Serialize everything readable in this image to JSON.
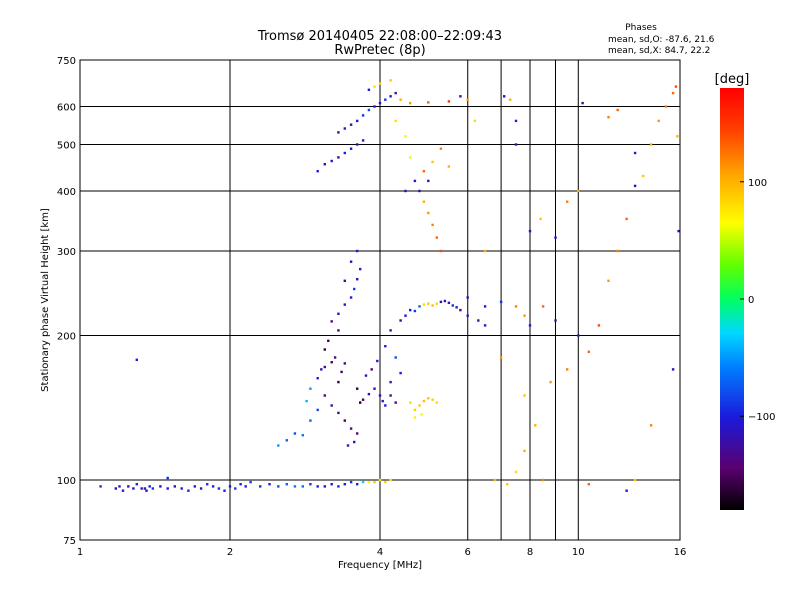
{
  "chart_data": {
    "type": "scatter",
    "title": "Tromsø 20140405 22:08:00–22:09:43",
    "subtitle": "RwPretec (8p)",
    "xlabel": "Frequency [MHz]",
    "ylabel": "Stationary phase Virtual Height [km]",
    "x_scale": "log",
    "y_scale": "log",
    "xlim": [
      1,
      16
    ],
    "ylim": [
      75,
      750
    ],
    "x_ticks": [
      1,
      2,
      4,
      6,
      8,
      10,
      16
    ],
    "x_tick_labels": [
      "1",
      "2",
      "4",
      "6",
      "8",
      "10",
      "16"
    ],
    "y_ticks": [
      75,
      100,
      200,
      300,
      400,
      500,
      600,
      750
    ],
    "y_tick_labels": [
      "75",
      "100",
      "200",
      "300",
      "400",
      "500",
      "600",
      "750"
    ],
    "grid": true,
    "phase_info": {
      "heading": "Phases",
      "line1": "mean, sd,O: -87.6, 21.6",
      "line2": "mean, sd,X: 84.7, 22.2"
    },
    "colorbar": {
      "label": "[deg]",
      "range": [
        -180,
        180
      ],
      "ticks": [
        100,
        0,
        -100
      ],
      "tick_labels": [
        "100",
        "0",
        "−100"
      ]
    },
    "series": [
      {
        "points": [
          [
            1.1,
            97,
            -90
          ],
          [
            1.18,
            96,
            -120
          ],
          [
            1.2,
            97,
            -110
          ],
          [
            1.22,
            95,
            -100
          ],
          [
            1.25,
            97,
            -115
          ],
          [
            1.28,
            96,
            -105
          ],
          [
            1.3,
            98,
            -95
          ],
          [
            1.33,
            96,
            -120
          ],
          [
            1.36,
            95,
            -110
          ],
          [
            1.38,
            97,
            -100
          ],
          [
            1.4,
            96,
            -90
          ],
          [
            1.5,
            96,
            -105
          ],
          [
            1.55,
            97,
            -110
          ],
          [
            1.6,
            96,
            -100
          ],
          [
            1.65,
            95,
            -95
          ],
          [
            1.7,
            97,
            -100
          ],
          [
            1.75,
            96,
            -110
          ],
          [
            1.8,
            98,
            -90
          ],
          [
            1.85,
            97,
            -100
          ],
          [
            1.9,
            96,
            -95
          ],
          [
            1.95,
            95,
            -100
          ],
          [
            2.0,
            97,
            -110
          ],
          [
            2.05,
            96,
            -90
          ],
          [
            2.1,
            98,
            -100
          ],
          [
            2.15,
            97,
            -95
          ],
          [
            2.2,
            99,
            -85
          ],
          [
            2.3,
            97,
            -90
          ],
          [
            2.4,
            98,
            -100
          ],
          [
            2.5,
            97,
            -80
          ],
          [
            2.6,
            98,
            -70
          ],
          [
            2.7,
            97,
            -60
          ],
          [
            2.8,
            97,
            -65
          ],
          [
            2.9,
            98,
            -90
          ],
          [
            3.0,
            97,
            -100
          ],
          [
            3.1,
            97,
            -105
          ],
          [
            3.2,
            98,
            -110
          ],
          [
            3.3,
            97,
            -95
          ],
          [
            3.4,
            98,
            -100
          ],
          [
            3.5,
            99,
            -90
          ],
          [
            3.6,
            98,
            -95
          ],
          [
            3.7,
            99,
            -30
          ],
          [
            3.8,
            99,
            60
          ],
          [
            3.9,
            99,
            90
          ],
          [
            4.0,
            100,
            80
          ],
          [
            4.1,
            99,
            85
          ],
          [
            4.2,
            100,
            75
          ],
          [
            1.3,
            178,
            -100
          ],
          [
            1.5,
            101,
            -95
          ],
          [
            1.35,
            96,
            -115
          ],
          [
            1.45,
            97,
            -120
          ],
          [
            2.5,
            118,
            -50
          ],
          [
            2.6,
            121,
            -70
          ],
          [
            2.7,
            125,
            -80
          ],
          [
            2.8,
            124,
            -60
          ],
          [
            2.9,
            133,
            -70
          ],
          [
            3.0,
            140,
            -80
          ],
          [
            2.85,
            146,
            -40
          ],
          [
            2.9,
            155,
            -50
          ],
          [
            3.0,
            163,
            -100
          ],
          [
            3.05,
            170,
            -120
          ],
          [
            3.1,
            172,
            -130
          ],
          [
            3.2,
            176,
            -150
          ],
          [
            3.25,
            180,
            -140
          ],
          [
            3.1,
            187,
            -160
          ],
          [
            3.15,
            195,
            -150
          ],
          [
            3.3,
            205,
            -140
          ],
          [
            3.2,
            214,
            -130
          ],
          [
            3.3,
            222,
            -120
          ],
          [
            3.4,
            232,
            -110
          ],
          [
            3.5,
            240,
            -100
          ],
          [
            3.55,
            250,
            -90
          ],
          [
            3.6,
            262,
            -110
          ],
          [
            3.65,
            275,
            -100
          ],
          [
            3.5,
            285,
            -120
          ],
          [
            3.4,
            260,
            -140
          ],
          [
            3.6,
            300,
            -100
          ],
          [
            3.1,
            150,
            -140
          ],
          [
            3.2,
            143,
            -120
          ],
          [
            3.3,
            138,
            -130
          ],
          [
            3.4,
            133,
            -150
          ],
          [
            3.5,
            128,
            -130
          ],
          [
            3.6,
            125,
            -140
          ],
          [
            3.55,
            120,
            -120
          ],
          [
            3.45,
            118,
            -110
          ],
          [
            3.7,
            147,
            -150
          ],
          [
            3.8,
            151,
            -130
          ],
          [
            3.9,
            155,
            -120
          ],
          [
            3.75,
            165,
            -110
          ],
          [
            3.85,
            170,
            -140
          ],
          [
            3.95,
            177,
            -100
          ],
          [
            3.3,
            160,
            -160
          ],
          [
            3.35,
            168,
            -150
          ],
          [
            3.4,
            175,
            -130
          ],
          [
            3.6,
            155,
            -160
          ],
          [
            3.65,
            145,
            -170
          ],
          [
            4.0,
            150,
            -120
          ],
          [
            4.05,
            146,
            -110
          ],
          [
            4.1,
            143,
            -100
          ],
          [
            4.2,
            150,
            -120
          ],
          [
            4.3,
            145,
            -130
          ],
          [
            4.2,
            160,
            -110
          ],
          [
            4.4,
            167,
            -100
          ],
          [
            4.3,
            180,
            -80
          ],
          [
            4.1,
            190,
            -100
          ],
          [
            4.2,
            205,
            -110
          ],
          [
            4.4,
            215,
            -120
          ],
          [
            4.5,
            220,
            -110
          ],
          [
            4.6,
            226,
            -100
          ],
          [
            4.7,
            225,
            -90
          ],
          [
            4.8,
            230,
            -70
          ],
          [
            4.9,
            232,
            80
          ],
          [
            5.0,
            233,
            90
          ],
          [
            5.1,
            231,
            95
          ],
          [
            5.2,
            233,
            85
          ],
          [
            5.3,
            235,
            -120
          ],
          [
            5.4,
            236,
            -110
          ],
          [
            5.5,
            234,
            -100
          ],
          [
            5.6,
            231,
            -90
          ],
          [
            5.7,
            229,
            -100
          ],
          [
            5.8,
            226,
            -140
          ],
          [
            6.0,
            220,
            -110
          ],
          [
            6.3,
            215,
            -120
          ],
          [
            6.5,
            210,
            -100
          ],
          [
            4.6,
            145,
            80
          ],
          [
            4.7,
            140,
            85
          ],
          [
            4.8,
            143,
            90
          ],
          [
            4.9,
            146,
            95
          ],
          [
            5.0,
            148,
            90
          ],
          [
            5.1,
            147,
            88
          ],
          [
            5.2,
            145,
            80
          ],
          [
            4.7,
            135,
            70
          ],
          [
            4.85,
            137,
            60
          ],
          [
            3.0,
            440,
            -100
          ],
          [
            3.1,
            455,
            -120
          ],
          [
            3.2,
            462,
            -110
          ],
          [
            3.3,
            470,
            -130
          ],
          [
            3.4,
            480,
            -100
          ],
          [
            3.5,
            490,
            -110
          ],
          [
            3.6,
            500,
            -120
          ],
          [
            3.7,
            510,
            -100
          ],
          [
            3.3,
            530,
            -130
          ],
          [
            3.4,
            540,
            -110
          ],
          [
            3.5,
            550,
            -120
          ],
          [
            3.6,
            560,
            -100
          ],
          [
            3.7,
            575,
            -90
          ],
          [
            3.8,
            590,
            -80
          ],
          [
            3.9,
            600,
            -100
          ],
          [
            4.0,
            610,
            -110
          ],
          [
            4.1,
            620,
            -90
          ],
          [
            4.2,
            630,
            -100
          ],
          [
            4.3,
            640,
            -120
          ],
          [
            3.8,
            650,
            -100
          ],
          [
            3.9,
            660,
            80
          ],
          [
            4.0,
            670,
            85
          ],
          [
            4.2,
            680,
            90
          ],
          [
            4.4,
            620,
            100
          ],
          [
            4.6,
            610,
            110
          ],
          [
            5.0,
            612,
            130
          ],
          [
            5.5,
            615,
            150
          ],
          [
            4.3,
            560,
            80
          ],
          [
            4.5,
            520,
            70
          ],
          [
            4.6,
            470,
            60
          ],
          [
            4.7,
            420,
            -100
          ],
          [
            4.8,
            400,
            -120
          ],
          [
            4.9,
            380,
            100
          ],
          [
            5.0,
            360,
            110
          ],
          [
            5.1,
            340,
            120
          ],
          [
            5.2,
            320,
            130
          ],
          [
            5.3,
            300,
            140
          ],
          [
            6.0,
            240,
            -110
          ],
          [
            6.5,
            230,
            -100
          ],
          [
            7.0,
            235,
            -90
          ],
          [
            7.5,
            230,
            120
          ],
          [
            7.8,
            220,
            110
          ],
          [
            8.0,
            210,
            -100
          ],
          [
            8.5,
            230,
            130
          ],
          [
            9.0,
            215,
            -120
          ],
          [
            10.0,
            200,
            -110
          ],
          [
            6.8,
            100,
            100
          ],
          [
            7.2,
            98,
            90
          ],
          [
            7.5,
            104,
            80
          ],
          [
            7.8,
            150,
            90
          ],
          [
            8.2,
            130,
            100
          ],
          [
            8.8,
            160,
            110
          ],
          [
            9.5,
            170,
            120
          ],
          [
            10.5,
            185,
            130
          ],
          [
            11.0,
            210,
            140
          ],
          [
            11.5,
            260,
            110
          ],
          [
            12.0,
            300,
            120
          ],
          [
            12.5,
            350,
            130
          ],
          [
            13.0,
            410,
            -120
          ],
          [
            13.5,
            430,
            90
          ],
          [
            14.0,
            500,
            100
          ],
          [
            14.5,
            560,
            110
          ],
          [
            15.0,
            600,
            120
          ],
          [
            15.5,
            640,
            130
          ],
          [
            15.7,
            660,
            140
          ],
          [
            15.8,
            520,
            100
          ],
          [
            15.9,
            330,
            -110
          ],
          [
            15.5,
            170,
            -120
          ],
          [
            14.0,
            130,
            120
          ],
          [
            13.0,
            100,
            90
          ],
          [
            12.5,
            95,
            -100
          ],
          [
            10.5,
            98,
            130
          ],
          [
            8.5,
            100,
            120
          ],
          [
            7.8,
            115,
            100
          ],
          [
            7.0,
            180,
            110
          ],
          [
            6.5,
            300,
            100
          ],
          [
            7.5,
            500,
            -110
          ],
          [
            7.5,
            560,
            -100
          ],
          [
            8.0,
            330,
            -120
          ],
          [
            8.4,
            350,
            90
          ],
          [
            9.0,
            320,
            -110
          ],
          [
            9.5,
            380,
            120
          ],
          [
            10.0,
            400,
            100
          ],
          [
            10.2,
            610,
            -120
          ],
          [
            11.5,
            570,
            120
          ],
          [
            12.0,
            590,
            130
          ],
          [
            13.0,
            480,
            -110
          ],
          [
            6.2,
            560,
            80
          ],
          [
            7.3,
            620,
            100
          ],
          [
            7.1,
            630,
            -120
          ],
          [
            6.0,
            620,
            110
          ],
          [
            5.8,
            630,
            -120
          ],
          [
            5.5,
            450,
            100
          ],
          [
            5.3,
            490,
            120
          ],
          [
            5.1,
            460,
            90
          ],
          [
            5.0,
            420,
            -110
          ],
          [
            4.9,
            440,
            130
          ],
          [
            4.5,
            400,
            -120
          ]
        ]
      }
    ]
  }
}
